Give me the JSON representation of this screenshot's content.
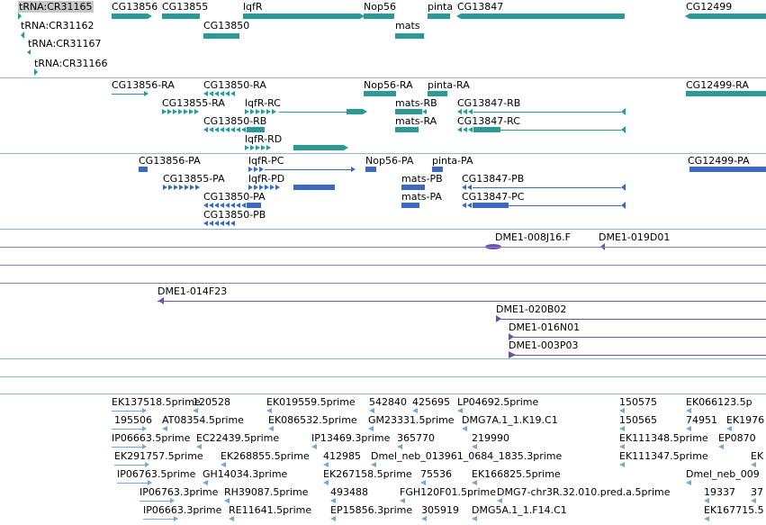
{
  "colors": {
    "teal": "#2a9a96",
    "blue": "#3a68c8",
    "purple": "#6a52ac",
    "lightblue": "#74a8d8",
    "separator_teal": "#8fbcc4",
    "separator_purple": "#8c7cc0",
    "separator_blue": "#8fb2d2",
    "label_highlight": "#c8c8c8"
  },
  "tracks": {
    "genes": {
      "labels": [
        "tRNA:CR31165",
        "CG13856",
        "CG13855",
        "lqfR",
        "Nop56",
        "pinta",
        "CG13847",
        "CG12499",
        "tRNA:CR31162",
        "CG13850",
        "mats",
        "tRNA:CR31167",
        "tRNA:CR31166"
      ]
    },
    "transcripts": {
      "labels": [
        "CG13856-RA",
        "CG13850-RA",
        "Nop56-RA",
        "pinta-RA",
        "CG12499-RA",
        "CG13855-RA",
        "lqfR-RC",
        "mats-RB",
        "CG13847-RB",
        "CG13850-RB",
        "mats-RA",
        "CG13847-RC",
        "lqfR-RD"
      ]
    },
    "proteins": {
      "labels": [
        "CG13856-PA",
        "lqfR-PC",
        "Nop56-PA",
        "pinta-PA",
        "CG12499-PA",
        "CG13855-PA",
        "lqfR-PD",
        "mats-PB",
        "CG13847-PB",
        "CG13850-PA",
        "mats-PA",
        "CG13847-PC",
        "CG13850-PB"
      ]
    },
    "bacs": {
      "labels": [
        "DME1-008J16.F",
        "DME1-019D01",
        "DME1-014F23",
        "DME1-020B02",
        "DME1-016N01",
        "DME1-003P03"
      ]
    },
    "ests": {
      "labels": [
        "EK137518.5prime",
        "120528",
        "EK019559.5prime",
        "542840",
        "425695",
        "LP04692.5prime",
        "150575",
        "EK066123.5p",
        "195506",
        "AT08354.5prime",
        "EK086532.5prime",
        "GM23331.5prime",
        "DMG7A.1_1.K19.C1",
        "150565",
        "74951",
        "EK1976",
        "IP06663.5prime",
        "EC22439.5prime",
        "IP13469.3prime",
        "365770",
        "219990",
        "EK111348.5prime",
        "EP0870",
        "EK291757.5prime",
        "EK268855.5prime",
        "412985",
        "Dmel_neb_013961_0684_1835.3prime",
        "EK111347.5prime",
        "EK",
        "IP06763.5prime",
        "GH14034.3prime",
        "EK267158.5prime",
        "75536",
        "EK166825.5prime",
        "Dmel_neb_009",
        "IP06763.3prime",
        "RH39087.5prime",
        "493488",
        "FGH120F01.5prime",
        "DMG7-chr3R.32.010.pred.a.5prime",
        "19337",
        "37",
        "IP06663.3prime",
        "RE11641.5prime",
        "EP15856.3prime",
        "305919",
        "DMG5A.1_1.F14.C1",
        "EK167715.5"
      ]
    }
  }
}
